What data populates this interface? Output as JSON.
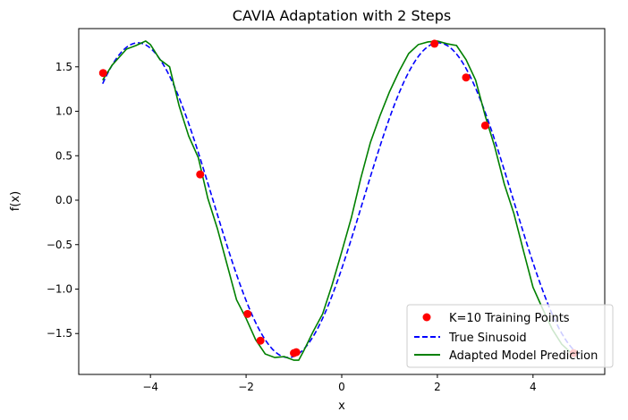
{
  "chart_data": {
    "type": "line",
    "title": "CAVIA Adaptation with 2 Steps",
    "xlabel": "x",
    "ylabel": "f(x)",
    "xlim": [
      -5.5,
      5.5
    ],
    "ylim": [
      -1.96,
      1.93
    ],
    "xticks": [
      -4,
      -2,
      0,
      2,
      4
    ],
    "xtick_labels": [
      "−4",
      "−2",
      "0",
      "2",
      "4"
    ],
    "yticks": [
      -1.5,
      -1.0,
      -0.5,
      0.0,
      0.5,
      1.0,
      1.5
    ],
    "ytick_labels": [
      "−1.5",
      "−1.0",
      "−0.5",
      "0.0",
      "0.5",
      "1.0",
      "1.5"
    ],
    "grid": false,
    "legend_position": "bottom-right",
    "colors": {
      "points": "#ff0000",
      "true": "#0000ff",
      "pred": "#008000"
    },
    "scatter": {
      "name": "K=10 Training Points",
      "x": [
        -4.99,
        -2.96,
        -1.97,
        -1.7,
        -1.0,
        -0.95,
        1.94,
        2.6,
        3.0,
        4.85
      ],
      "y": [
        1.43,
        0.29,
        -1.28,
        -1.58,
        -1.72,
        -1.71,
        1.76,
        1.38,
        0.84,
        -1.72
      ]
    },
    "true_curve": {
      "name": "True Sinusoid",
      "amplitude": 1.77,
      "frequency": 1.0,
      "phase": -0.45,
      "x_range": [
        -5,
        5
      ],
      "style": "dashed"
    },
    "prediction": {
      "name": "Adapted Model Prediction",
      "x": [
        -5.0,
        -4.8,
        -4.5,
        -4.3,
        -4.1,
        -4.0,
        -3.8,
        -3.6,
        -3.4,
        -3.2,
        -3.0,
        -2.8,
        -2.6,
        -2.4,
        -2.2,
        -2.0,
        -1.8,
        -1.6,
        -1.4,
        -1.2,
        -1.0,
        -0.9,
        -0.8,
        -0.6,
        -0.4,
        -0.2,
        0.0,
        0.2,
        0.4,
        0.6,
        0.8,
        1.0,
        1.2,
        1.4,
        1.6,
        1.8,
        2.0,
        2.2,
        2.4,
        2.6,
        2.8,
        3.0,
        3.2,
        3.4,
        3.6,
        3.8,
        4.0,
        4.2,
        4.4,
        4.6,
        4.8,
        4.9
      ],
      "y": [
        1.35,
        1.52,
        1.7,
        1.74,
        1.79,
        1.75,
        1.58,
        1.5,
        1.06,
        0.72,
        0.48,
        0.02,
        -0.32,
        -0.72,
        -1.12,
        -1.33,
        -1.57,
        -1.73,
        -1.77,
        -1.76,
        -1.8,
        -1.8,
        -1.7,
        -1.48,
        -1.28,
        -0.95,
        -0.58,
        -0.2,
        0.25,
        0.65,
        0.95,
        1.22,
        1.45,
        1.65,
        1.75,
        1.78,
        1.79,
        1.76,
        1.74,
        1.58,
        1.35,
        0.95,
        0.6,
        0.18,
        -0.15,
        -0.57,
        -0.98,
        -1.22,
        -1.45,
        -1.62,
        -1.72,
        -1.76
      ]
    }
  }
}
